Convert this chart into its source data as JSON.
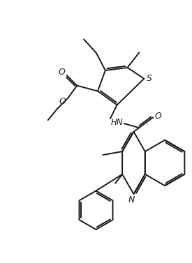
{
  "background_color": "#ffffff",
  "line_color": "#1a1a1a",
  "line_width": 1.4,
  "figsize": [
    2.75,
    3.77
  ],
  "dpi": 100,
  "atoms": {
    "S_label": "S",
    "N_label": "N",
    "O1_label": "O",
    "O2_label": "O",
    "HN_label": "HN",
    "O3_label": "O"
  }
}
